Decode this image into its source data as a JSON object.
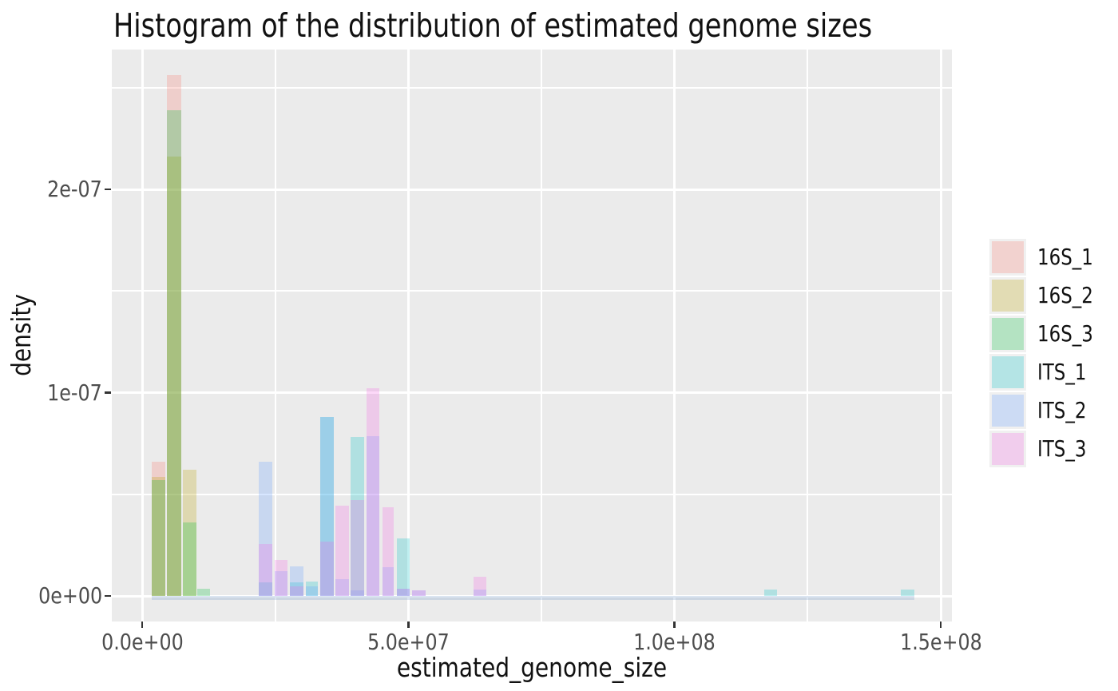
{
  "title": "Histogram of the distribution of estimated genome sizes",
  "axes": {
    "x": {
      "label": "estimated_genome_size",
      "ticks": [
        {
          "value": 0,
          "label": "0.0e+00"
        },
        {
          "value": 50000000.0,
          "label": "5.0e+07"
        },
        {
          "value": 100000000.0,
          "label": "1.0e+08"
        },
        {
          "value": 150000000.0,
          "label": "1.5e+08"
        }
      ],
      "minor": [
        25000000.0,
        75000000.0,
        125000000.0
      ]
    },
    "y": {
      "label": "density",
      "ticks": [
        {
          "value": 0,
          "label": "0e+00"
        },
        {
          "value": 1e-07,
          "label": "1e-07"
        },
        {
          "value": 2e-07,
          "label": "2e-07"
        }
      ],
      "minor": [
        5e-08,
        1.5e-07,
        2.5e-07
      ]
    }
  },
  "legend": {
    "entries": [
      {
        "label": "16S_1",
        "color": "#F8766D"
      },
      {
        "label": "16S_2",
        "color": "#B79F00"
      },
      {
        "label": "16S_3",
        "color": "#00BA38"
      },
      {
        "label": "ITS_1",
        "color": "#00BFC4"
      },
      {
        "label": "ITS_2",
        "color": "#619CFF"
      },
      {
        "label": "ITS_3",
        "color": "#F564E3"
      }
    ]
  },
  "chart_data": {
    "type": "bar",
    "subtype": "overlaid_histogram",
    "position": "identity",
    "fill_alpha": 0.25,
    "title": "Histogram of the distribution of estimated genome sizes",
    "xlabel": "estimated_genome_size",
    "ylabel": "density",
    "xlim": [
      -5700000.0,
      151800000.0
    ],
    "ylim": [
      0,
      2.69e-07
    ],
    "grid": true,
    "legend_position": "right",
    "panel_bg": "#EBEBEB",
    "grid_color": "#FFFFFF",
    "series": [
      {
        "name": "16S_1",
        "color": "#F8766D",
        "bars": [
          [
            1800000.0,
            4300000.0,
            6.6e-08
          ],
          [
            4650000.0,
            7300000.0,
            2.56e-07
          ]
        ]
      },
      {
        "name": "16S_2",
        "color": "#B79F00",
        "bars": [
          [
            1800000.0,
            4300000.0,
            5.85e-08
          ],
          [
            4650000.0,
            7300000.0,
            2.16e-07
          ],
          [
            7700000.0,
            10200000.0,
            6.2e-08
          ]
        ]
      },
      {
        "name": "16S_3",
        "color": "#00BA38",
        "bars": [
          [
            1800000.0,
            4300000.0,
            5.7e-08
          ],
          [
            4650000.0,
            7300000.0,
            2.39e-07
          ],
          [
            7700000.0,
            10200000.0,
            3.6e-08
          ],
          [
            10400000.0,
            12800000.0,
            3.5e-09
          ]
        ]
      },
      {
        "name": "ITS_1",
        "color": "#00BFC4",
        "bars": [
          [
            21900000.0,
            24400000.0,
            6.6e-09
          ],
          [
            27700000.0,
            30300000.0,
            6.6e-09
          ],
          [
            30700000.0,
            33000000.0,
            7e-09
          ],
          [
            33500000.0,
            36000000.0,
            8.8e-08
          ],
          [
            39200000.0,
            41700000.0,
            7.8e-08
          ],
          [
            47800000.0,
            50300000.0,
            2.83e-08
          ],
          [
            116800000.0,
            119200000.0,
            3.3e-09
          ],
          [
            142500000.0,
            145100000.0,
            3.3e-09
          ]
        ]
      },
      {
        "name": "ITS_2",
        "color": "#619CFF",
        "bars": [
          [
            21900000.0,
            24400000.0,
            6.6e-08
          ],
          [
            24900000.0,
            27300000.0,
            1.2e-08
          ],
          [
            27700000.0,
            30300000.0,
            1.45e-08
          ],
          [
            30700000.0,
            33000000.0,
            4.6e-09
          ],
          [
            33500000.0,
            36000000.0,
            8.8e-08
          ],
          [
            36300000.0,
            38800000.0,
            8.3e-09
          ],
          [
            39200000.0,
            41700000.0,
            2.6e-09
          ],
          [
            42200000.0,
            44600000.0,
            7.86e-08
          ],
          [
            45200000.0,
            47300000.0,
            1.42e-08
          ],
          [
            47800000.0,
            50300000.0,
            3.4e-09
          ],
          [
            50700000.0,
            53200000.0,
            2.8e-09
          ],
          [
            62200000.0,
            64600000.0,
            3.3e-09
          ]
        ]
      },
      {
        "name": "ITS_3",
        "color": "#F564E3",
        "bars": [
          [
            21900000.0,
            24400000.0,
            2.57e-08
          ],
          [
            24900000.0,
            27300000.0,
            1.77e-08
          ],
          [
            27700000.0,
            30300000.0,
            4.6e-09
          ],
          [
            33500000.0,
            36000000.0,
            2.68e-08
          ],
          [
            36300000.0,
            38800000.0,
            4.43e-08
          ],
          [
            39200000.0,
            41700000.0,
            4.72e-08
          ],
          [
            42200000.0,
            44600000.0,
            1.02e-07
          ],
          [
            45200000.0,
            47300000.0,
            4.36e-08
          ],
          [
            47800000.0,
            50300000.0,
            3.4e-09
          ],
          [
            50700000.0,
            53200000.0,
            2.8e-09
          ],
          [
            62200000.0,
            64600000.0,
            9.6e-09
          ]
        ]
      }
    ],
    "baseline_band": {
      "x0": 1800000.0,
      "x1": 145100000.0,
      "color": "rgba(110,150,200,0.25)"
    }
  }
}
